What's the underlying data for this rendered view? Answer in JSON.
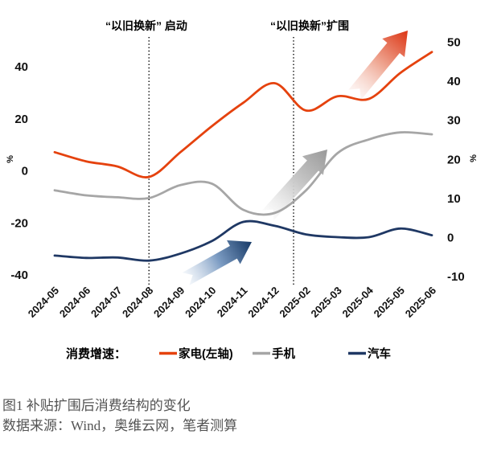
{
  "chart_data": {
    "type": "line",
    "categories": [
      "2024-05",
      "2024-06",
      "2024-07",
      "2024-08",
      "2024-09",
      "2024-10",
      "2024-11",
      "2024-12",
      "2025-02",
      "2025-03",
      "2025-04",
      "2025-05",
      "2025-06"
    ],
    "series": [
      {
        "name": "家电(左轴)",
        "axis": "left",
        "color": "#e5420e",
        "values": [
          7,
          3.5,
          1.5,
          -2.5,
          7,
          17,
          26,
          33.5,
          23,
          28.5,
          27.5,
          37.5,
          45.5
        ]
      },
      {
        "name": "手机",
        "axis": "right",
        "color": "#a6a6a6",
        "values": [
          12,
          10.7,
          10.2,
          10,
          13.3,
          13.7,
          7,
          6.2,
          12,
          21.5,
          25,
          26.8,
          26.3
        ]
      },
      {
        "name": "汽车",
        "axis": "right",
        "color": "#1f3864",
        "values": [
          -4.7,
          -5.3,
          -5.2,
          -6,
          -4.2,
          -1,
          3.9,
          2.9,
          0.7,
          0,
          0,
          2.2,
          0.5
        ]
      }
    ],
    "left_axis": {
      "unit": "%",
      "ticks": [
        40,
        20,
        0,
        -20,
        -40
      ]
    },
    "right_axis": {
      "unit": "%",
      "ticks": [
        50,
        40,
        30,
        20,
        10,
        0,
        -10
      ]
    },
    "event_lines": [
      {
        "label": "“以旧换新” 启动",
        "x_index": 3
      },
      {
        "label": "“以旧换新”扩围",
        "x_index": 7.6
      }
    ],
    "legend_title": "消费增速：",
    "arrows": [
      {
        "name": "blue-trend-arrow",
        "color": "#173a67"
      },
      {
        "name": "gray-trend-arrow",
        "color": "#999999"
      },
      {
        "name": "red-trend-arrow",
        "color": "#dc3514"
      }
    ],
    "grid": false,
    "legend_position": "bottom"
  },
  "caption": {
    "title": "图1 补贴扩围后消费结构的变化",
    "source": "数据来源：Wind，奥维云网，笔者测算"
  }
}
